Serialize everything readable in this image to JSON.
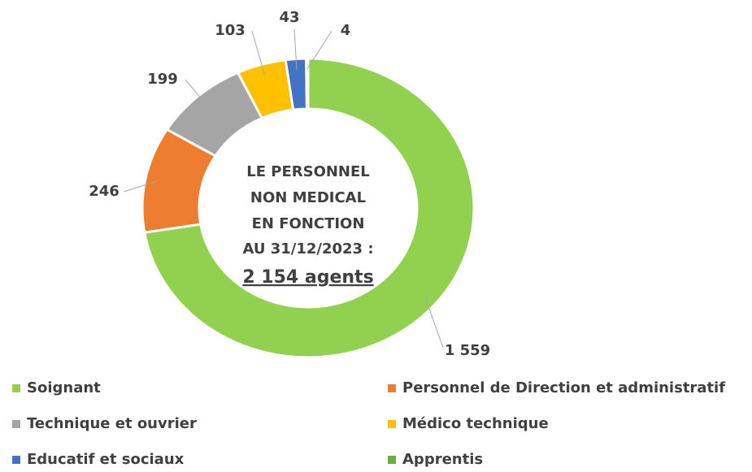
{
  "chart_data": {
    "type": "donut",
    "categories": [
      "Soignant",
      "Personnel de Direction et administratif",
      "Technique et ouvrier",
      "Médico technique",
      "Educatif et sociaux",
      "Apprentis"
    ],
    "values": [
      1559,
      246,
      199,
      103,
      43,
      4
    ],
    "value_labels": [
      "1 559",
      "246",
      "199",
      "103",
      "43",
      "4"
    ],
    "colors": [
      "#92d050",
      "#ed7d31",
      "#a5a5a5",
      "#ffc000",
      "#4472c4",
      "#70ad47"
    ],
    "center_text": [
      "LE PERSONNEL",
      "NON MEDICAL",
      "EN FONCTION",
      "AU 31/12/2023 :",
      "2 154 agents"
    ],
    "legend": "bottom"
  }
}
